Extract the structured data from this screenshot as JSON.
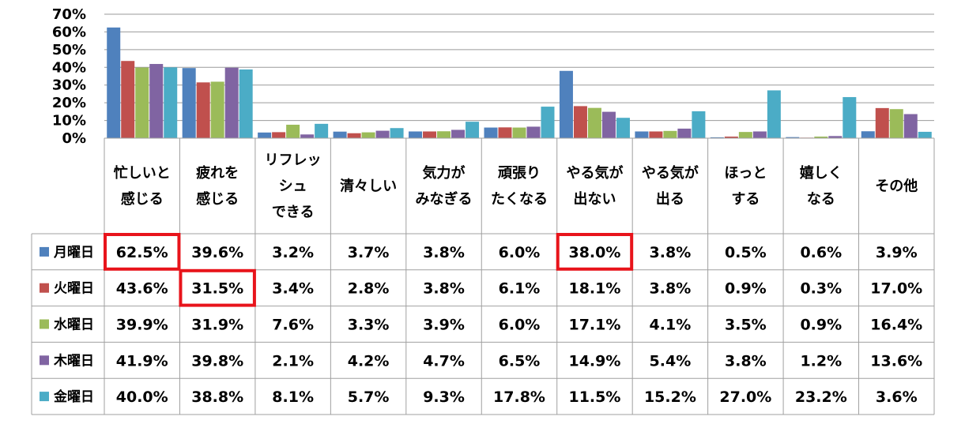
{
  "chart_data": {
    "type": "bar",
    "ylim": [
      0,
      70
    ],
    "yticks": [
      "0%",
      "10%",
      "20%",
      "30%",
      "40%",
      "50%",
      "60%",
      "70%"
    ],
    "grid": true,
    "legend": "data-table-left",
    "categories": [
      [
        "忙しいと",
        "感じる"
      ],
      [
        "疲れを",
        "感じる"
      ],
      [
        "リフレッ",
        "シュ",
        "できる"
      ],
      [
        "清々しい"
      ],
      [
        "気力が",
        "みなぎる"
      ],
      [
        "頑張り",
        "たくなる"
      ],
      [
        "やる気が",
        "出ない"
      ],
      [
        "やる気が",
        "出る"
      ],
      [
        "ほっと",
        "する"
      ],
      [
        "嬉しく",
        "なる"
      ],
      [
        "その他"
      ]
    ],
    "series": [
      {
        "name": "月曜日",
        "color": "#4F81BD",
        "values": [
          62.5,
          39.6,
          3.2,
          3.7,
          3.8,
          6.0,
          38.0,
          3.8,
          0.5,
          0.6,
          3.9
        ],
        "labels": [
          "62.5%",
          "39.6%",
          "3.2%",
          "3.7%",
          "3.8%",
          "6.0%",
          "38.0%",
          "3.8%",
          "0.5%",
          "0.6%",
          "3.9%"
        ]
      },
      {
        "name": "火曜日",
        "color": "#C0504D",
        "values": [
          43.6,
          31.5,
          3.4,
          2.8,
          3.8,
          6.1,
          18.1,
          3.8,
          0.9,
          0.3,
          17.0
        ],
        "labels": [
          "43.6%",
          "31.5%",
          "3.4%",
          "2.8%",
          "3.8%",
          "6.1%",
          "18.1%",
          "3.8%",
          "0.9%",
          "0.3%",
          "17.0%"
        ]
      },
      {
        "name": "水曜日",
        "color": "#9BBB59",
        "values": [
          39.9,
          31.9,
          7.6,
          3.3,
          3.9,
          6.0,
          17.1,
          4.1,
          3.5,
          0.9,
          16.4
        ],
        "labels": [
          "39.9%",
          "31.9%",
          "7.6%",
          "3.3%",
          "3.9%",
          "6.0%",
          "17.1%",
          "4.1%",
          "3.5%",
          "0.9%",
          "16.4%"
        ]
      },
      {
        "name": "木曜日",
        "color": "#8064A2",
        "values": [
          41.9,
          39.8,
          2.1,
          4.2,
          4.7,
          6.5,
          14.9,
          5.4,
          3.8,
          1.2,
          13.6
        ],
        "labels": [
          "41.9%",
          "39.8%",
          "2.1%",
          "4.2%",
          "4.7%",
          "6.5%",
          "14.9%",
          "5.4%",
          "3.8%",
          "1.2%",
          "13.6%"
        ]
      },
      {
        "name": "金曜日",
        "color": "#4BACC6",
        "values": [
          40.0,
          38.8,
          8.1,
          5.7,
          9.3,
          17.8,
          11.5,
          15.2,
          27.0,
          23.2,
          3.6
        ],
        "labels": [
          "40.0%",
          "38.8%",
          "8.1%",
          "5.7%",
          "9.3%",
          "17.8%",
          "11.5%",
          "15.2%",
          "27.0%",
          "23.2%",
          "3.6%"
        ]
      }
    ],
    "highlights": [
      {
        "series": 0,
        "category": 0
      },
      {
        "series": 0,
        "category": 6
      },
      {
        "series": 1,
        "category": 1
      }
    ],
    "highlight_color": "#E8141B"
  }
}
